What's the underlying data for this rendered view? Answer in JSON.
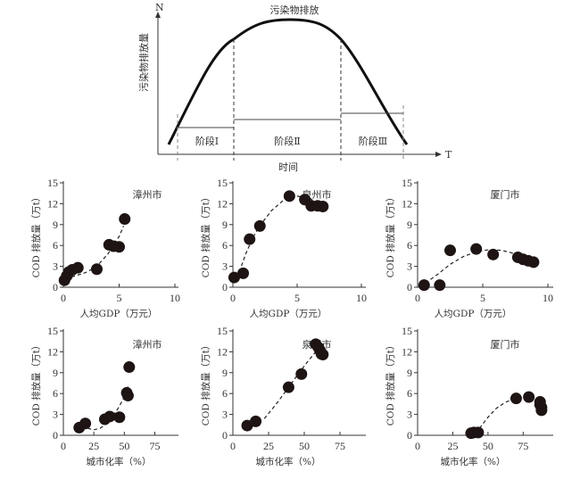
{
  "diagram": {
    "title": "污染物排放",
    "y_axis_label": "污染物排放量",
    "y_axis_symbol": "N",
    "x_axis_symbol": "T",
    "x_axis_label": "时间",
    "stages": [
      "阶段Ⅰ",
      "阶段Ⅱ",
      "阶段Ⅲ"
    ]
  },
  "chart_data": [
    {
      "type": "scatter",
      "title": "漳州市",
      "xlabel": "人均GDP（万元）",
      "ylabel": "COD 排放量（万t）",
      "xlim": [
        0,
        10
      ],
      "ylim": [
        0,
        15
      ],
      "xticks": [
        "0",
        "5",
        "10"
      ],
      "yticks": [
        "0",
        "3",
        "6",
        "9",
        "12",
        "15"
      ],
      "points": [
        [
          0.1,
          1.0
        ],
        [
          0.3,
          1.6
        ],
        [
          0.5,
          2.2
        ],
        [
          0.8,
          2.5
        ],
        [
          1.3,
          2.8
        ],
        [
          3.0,
          2.6
        ],
        [
          4.1,
          6.1
        ],
        [
          4.5,
          5.9
        ],
        [
          5.0,
          5.8
        ],
        [
          5.5,
          9.8
        ]
      ],
      "fit": [
        [
          0.2,
          1.2
        ],
        [
          1,
          1.6
        ],
        [
          2,
          2.1
        ],
        [
          3,
          3.0
        ],
        [
          4,
          4.8
        ],
        [
          5,
          7.3
        ],
        [
          5.4,
          8.8
        ]
      ]
    },
    {
      "type": "scatter",
      "title": "泉州市",
      "xlabel": "人均GDP（万元）",
      "ylabel": "COD 排放量（万t）",
      "xlim": [
        0,
        10
      ],
      "ylim": [
        0,
        15
      ],
      "xticks": [
        "0",
        "5",
        "10"
      ],
      "yticks": [
        "0",
        "3",
        "6",
        "9",
        "12",
        "15"
      ],
      "points": [
        [
          0.1,
          1.4
        ],
        [
          0.8,
          2.0
        ],
        [
          1.3,
          6.9
        ],
        [
          2.1,
          8.8
        ],
        [
          4.4,
          13.1
        ],
        [
          5.6,
          12.6
        ],
        [
          6.1,
          11.7
        ],
        [
          6.6,
          11.7
        ],
        [
          7.0,
          11.6
        ]
      ],
      "fit": [
        [
          0.5,
          2.2
        ],
        [
          1,
          4.8
        ],
        [
          1.5,
          6.9
        ],
        [
          2,
          8.6
        ],
        [
          3,
          11.0
        ],
        [
          4,
          12.6
        ],
        [
          5,
          13.1
        ],
        [
          6,
          12.7
        ],
        [
          7,
          11.8
        ]
      ]
    },
    {
      "type": "scatter",
      "title": "厦门市",
      "xlabel": "人均GDP（万元）",
      "ylabel": "COD 排放量（万t）",
      "xlim": [
        0,
        10
      ],
      "ylim": [
        0,
        15
      ],
      "xticks": [
        "0",
        "5",
        "10"
      ],
      "yticks": [
        "0",
        "3",
        "6",
        "9",
        "12",
        "15"
      ],
      "points": [
        [
          0.5,
          0.3
        ],
        [
          1.7,
          0.3
        ],
        [
          2.5,
          5.3
        ],
        [
          4.5,
          5.5
        ],
        [
          5.8,
          4.7
        ],
        [
          7.7,
          4.3
        ],
        [
          8.1,
          4.0
        ],
        [
          8.5,
          3.8
        ],
        [
          8.9,
          3.6
        ]
      ],
      "fit": [
        [
          0.6,
          0.6
        ],
        [
          1.5,
          1.8
        ],
        [
          2.5,
          3.3
        ],
        [
          3.5,
          4.4
        ],
        [
          4.5,
          5.1
        ],
        [
          5.5,
          5.4
        ],
        [
          6.5,
          5.3
        ],
        [
          7.5,
          4.8
        ],
        [
          8.5,
          4.0
        ],
        [
          9,
          3.6
        ]
      ]
    },
    {
      "type": "scatter",
      "title": "漳州市",
      "xlabel": "城市化率（%）",
      "ylabel": "COD 排放量（万t）",
      "xlim": [
        0,
        90
      ],
      "ylim": [
        0,
        15
      ],
      "xticks": [
        "0",
        "25",
        "50",
        "75"
      ],
      "yticks": [
        "0",
        "3",
        "6",
        "9",
        "12",
        "15"
      ],
      "points": [
        [
          13,
          1.1
        ],
        [
          18,
          1.7
        ],
        [
          34,
          2.3
        ],
        [
          38,
          2.7
        ],
        [
          46,
          2.6
        ],
        [
          52,
          6.1
        ],
        [
          53,
          5.7
        ],
        [
          54,
          9.8
        ]
      ],
      "fit": [
        [
          20,
          1.0
        ],
        [
          25,
          0.8
        ],
        [
          30,
          1.0
        ],
        [
          35,
          1.6
        ],
        [
          40,
          2.6
        ],
        [
          45,
          3.9
        ],
        [
          50,
          5.5
        ],
        [
          53,
          7.0
        ]
      ]
    },
    {
      "type": "scatter",
      "title": "泉州市",
      "xlabel": "城市化率（%）",
      "ylabel": "COD 排放量（万t）",
      "xlim": [
        0,
        90
      ],
      "ylim": [
        0,
        15
      ],
      "xticks": [
        "0",
        "25",
        "50",
        "75"
      ],
      "yticks": [
        "0",
        "3",
        "6",
        "9",
        "12",
        "15"
      ],
      "points": [
        [
          10,
          1.4
        ],
        [
          16,
          2.0
        ],
        [
          39,
          6.9
        ],
        [
          48,
          8.8
        ],
        [
          58,
          13.1
        ],
        [
          60,
          12.6
        ],
        [
          61,
          12.2
        ],
        [
          62,
          11.7
        ],
        [
          63,
          11.6
        ]
      ],
      "fit": [
        [
          22,
          2.4
        ],
        [
          30,
          4.4
        ],
        [
          38,
          6.6
        ],
        [
          45,
          8.6
        ],
        [
          52,
          10.5
        ],
        [
          58,
          12.0
        ],
        [
          62,
          12.8
        ]
      ]
    },
    {
      "type": "scatter",
      "title": "厦门市",
      "xlabel": "城市化率（%）",
      "ylabel": "COD 排放量（万t）",
      "xlim": [
        0,
        90
      ],
      "ylim": [
        0,
        15
      ],
      "xticks": [
        "0",
        "25",
        "50",
        "75"
      ],
      "yticks": [
        "0",
        "3",
        "6",
        "9",
        "12",
        "15"
      ],
      "points": [
        [
          38,
          0.3
        ],
        [
          40,
          0.4
        ],
        [
          43,
          0.4
        ],
        [
          70,
          5.3
        ],
        [
          79,
          5.5
        ],
        [
          87,
          4.8
        ],
        [
          87,
          4.4
        ],
        [
          88,
          4.0
        ],
        [
          88,
          3.6
        ]
      ],
      "fit": [
        [
          44,
          1.0
        ],
        [
          50,
          2.6
        ],
        [
          56,
          3.9
        ],
        [
          62,
          4.7
        ],
        [
          68,
          5.2
        ]
      ]
    }
  ]
}
